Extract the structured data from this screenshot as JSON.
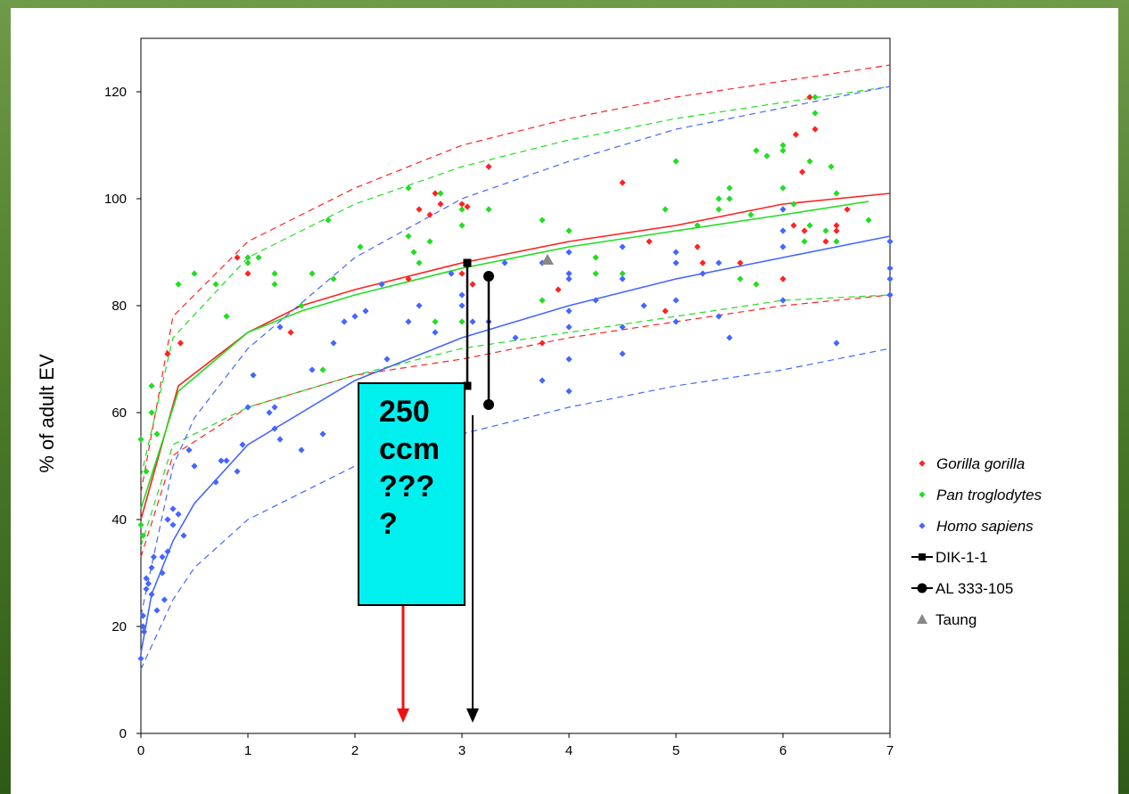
{
  "chart_data": {
    "type": "scatter",
    "title": "",
    "xlabel": "",
    "ylabel": "% of adult EV",
    "xlim": [
      0,
      7
    ],
    "ylim": [
      0,
      130
    ],
    "x_ticks": [
      "0",
      "1",
      "2",
      "3",
      "4",
      "5",
      "6",
      "7"
    ],
    "y_ticks": [
      "0",
      "20",
      "40",
      "60",
      "80",
      "100",
      "120"
    ],
    "grid": false,
    "legend_position": "right",
    "colors": {
      "gorilla": "#ff2222",
      "pan": "#22dd22",
      "homo": "#4466ff",
      "fossil": "#000000",
      "taung": "#888888",
      "arrow_red": "#ee1111"
    },
    "series": [
      {
        "name": "Gorilla gorilla",
        "marker": "diamond",
        "color": "#ff2222",
        "points": [
          [
            0.25,
            71
          ],
          [
            0.37,
            73
          ],
          [
            0.9,
            89
          ],
          [
            1.0,
            86
          ],
          [
            1.4,
            75
          ],
          [
            2.5,
            85
          ],
          [
            2.6,
            98
          ],
          [
            2.7,
            97
          ],
          [
            2.75,
            101
          ],
          [
            2.8,
            99
          ],
          [
            3.0,
            99
          ],
          [
            3.05,
            98.5
          ],
          [
            3.0,
            86
          ],
          [
            3.1,
            84
          ],
          [
            3.25,
            106
          ],
          [
            3.75,
            73
          ],
          [
            3.9,
            83
          ],
          [
            4.5,
            103
          ],
          [
            4.75,
            92
          ],
          [
            4.9,
            79
          ],
          [
            5.2,
            91
          ],
          [
            5.25,
            88
          ],
          [
            5.6,
            88
          ],
          [
            6.0,
            85
          ],
          [
            6.1,
            95
          ],
          [
            6.12,
            112
          ],
          [
            6.18,
            105
          ],
          [
            6.2,
            94
          ],
          [
            6.25,
            119
          ],
          [
            6.3,
            113
          ],
          [
            6.4,
            92
          ],
          [
            6.5,
            95
          ],
          [
            6.5,
            94
          ],
          [
            6.6,
            98
          ],
          [
            7.0,
            82
          ]
        ],
        "fitted_mean": [
          [
            0.0,
            40
          ],
          [
            0.35,
            65
          ],
          [
            1.0,
            75
          ],
          [
            1.5,
            80
          ],
          [
            2.0,
            83
          ],
          [
            3.0,
            88
          ],
          [
            4.0,
            92
          ],
          [
            5.0,
            95
          ],
          [
            6.0,
            99
          ],
          [
            7.0,
            101
          ]
        ],
        "upper_bound": [
          [
            0.0,
            45
          ],
          [
            0.3,
            78
          ],
          [
            1.0,
            92
          ],
          [
            2.0,
            102
          ],
          [
            3.0,
            110
          ],
          [
            4.0,
            115
          ],
          [
            5.0,
            119
          ],
          [
            6.0,
            122
          ],
          [
            7.0,
            125
          ]
        ],
        "lower_bound": [
          [
            0.0,
            33
          ],
          [
            0.3,
            52
          ],
          [
            1.0,
            61
          ],
          [
            2.0,
            67
          ],
          [
            3.0,
            70
          ],
          [
            4.0,
            74
          ],
          [
            5.0,
            77
          ],
          [
            6.0,
            80
          ],
          [
            7.0,
            82
          ]
        ]
      },
      {
        "name": "Pan troglodytes",
        "marker": "diamond",
        "color": "#22dd22",
        "points": [
          [
            0.0,
            55
          ],
          [
            0.0,
            39
          ],
          [
            0.02,
            37
          ],
          [
            0.05,
            49
          ],
          [
            0.1,
            65
          ],
          [
            0.1,
            60
          ],
          [
            0.15,
            56
          ],
          [
            0.35,
            84
          ],
          [
            0.5,
            86
          ],
          [
            0.7,
            84
          ],
          [
            0.8,
            78
          ],
          [
            1.0,
            89
          ],
          [
            1.0,
            88
          ],
          [
            1.1,
            89
          ],
          [
            1.25,
            86
          ],
          [
            1.25,
            84
          ],
          [
            1.5,
            80
          ],
          [
            1.6,
            86
          ],
          [
            1.7,
            68
          ],
          [
            1.75,
            96
          ],
          [
            1.8,
            85
          ],
          [
            2.05,
            91
          ],
          [
            2.25,
            84
          ],
          [
            2.5,
            102
          ],
          [
            2.5,
            93
          ],
          [
            2.55,
            90
          ],
          [
            2.6,
            88
          ],
          [
            2.7,
            92
          ],
          [
            2.75,
            77
          ],
          [
            2.8,
            101
          ],
          [
            3.0,
            98
          ],
          [
            3.0,
            95
          ],
          [
            3.0,
            77
          ],
          [
            3.25,
            98
          ],
          [
            3.75,
            96
          ],
          [
            3.75,
            81
          ],
          [
            4.0,
            94
          ],
          [
            4.25,
            89
          ],
          [
            4.25,
            86
          ],
          [
            4.5,
            86
          ],
          [
            4.9,
            98
          ],
          [
            5.0,
            107
          ],
          [
            5.2,
            95
          ],
          [
            5.4,
            98
          ],
          [
            5.4,
            100
          ],
          [
            5.5,
            100
          ],
          [
            5.5,
            102
          ],
          [
            5.6,
            85
          ],
          [
            5.7,
            97
          ],
          [
            5.75,
            109
          ],
          [
            5.75,
            84
          ],
          [
            5.85,
            108
          ],
          [
            6.0,
            110
          ],
          [
            6.0,
            109
          ],
          [
            6.0,
            102
          ],
          [
            6.1,
            99
          ],
          [
            6.2,
            92
          ],
          [
            6.25,
            95
          ],
          [
            6.25,
            107
          ],
          [
            6.3,
            116
          ],
          [
            6.3,
            119
          ],
          [
            6.4,
            94
          ],
          [
            6.45,
            106
          ],
          [
            6.5,
            101
          ],
          [
            6.5,
            92
          ],
          [
            6.8,
            96
          ]
        ],
        "fitted_mean": [
          [
            0.0,
            42
          ],
          [
            0.35,
            64
          ],
          [
            1.0,
            75
          ],
          [
            1.5,
            79
          ],
          [
            2.0,
            82
          ],
          [
            3.0,
            87
          ],
          [
            4.0,
            91
          ],
          [
            5.0,
            94
          ],
          [
            6.0,
            97
          ],
          [
            6.8,
            99.5
          ]
        ],
        "upper_bound": [
          [
            0.0,
            48
          ],
          [
            0.3,
            74
          ],
          [
            1.0,
            89
          ],
          [
            2.0,
            99
          ],
          [
            3.0,
            106
          ],
          [
            4.0,
            111
          ],
          [
            5.0,
            115
          ],
          [
            6.0,
            118
          ],
          [
            7.0,
            121
          ]
        ],
        "lower_bound": [
          [
            0.0,
            35
          ],
          [
            0.3,
            54
          ],
          [
            1.0,
            61
          ],
          [
            2.0,
            67
          ],
          [
            3.0,
            72
          ],
          [
            4.0,
            75
          ],
          [
            5.0,
            78
          ],
          [
            6.0,
            81
          ],
          [
            7.0,
            82
          ]
        ]
      },
      {
        "name": "Homo sapiens",
        "marker": "diamond",
        "color": "#4466ff",
        "points": [
          [
            0.0,
            14
          ],
          [
            0.02,
            20
          ],
          [
            0.02,
            22
          ],
          [
            0.03,
            19
          ],
          [
            0.05,
            27
          ],
          [
            0.05,
            29
          ],
          [
            0.07,
            28
          ],
          [
            0.1,
            26
          ],
          [
            0.1,
            31
          ],
          [
            0.12,
            33
          ],
          [
            0.15,
            23
          ],
          [
            0.2,
            30
          ],
          [
            0.2,
            33
          ],
          [
            0.22,
            25
          ],
          [
            0.25,
            34
          ],
          [
            0.25,
            40
          ],
          [
            0.3,
            39
          ],
          [
            0.3,
            42
          ],
          [
            0.35,
            41
          ],
          [
            0.4,
            37
          ],
          [
            0.45,
            53
          ],
          [
            0.5,
            50
          ],
          [
            0.7,
            47
          ],
          [
            0.75,
            51
          ],
          [
            0.8,
            51
          ],
          [
            0.9,
            49
          ],
          [
            0.95,
            54
          ],
          [
            1.0,
            61
          ],
          [
            1.05,
            67
          ],
          [
            1.2,
            60
          ],
          [
            1.25,
            57
          ],
          [
            1.25,
            61
          ],
          [
            1.3,
            55
          ],
          [
            1.3,
            76
          ],
          [
            1.5,
            53
          ],
          [
            1.6,
            68
          ],
          [
            1.7,
            56
          ],
          [
            1.8,
            73
          ],
          [
            1.9,
            77
          ],
          [
            2.0,
            78
          ],
          [
            2.1,
            79
          ],
          [
            2.25,
            84
          ],
          [
            2.3,
            70
          ],
          [
            2.5,
            77
          ],
          [
            2.6,
            80
          ],
          [
            2.75,
            75
          ],
          [
            2.9,
            86
          ],
          [
            3.0,
            82
          ],
          [
            3.0,
            80
          ],
          [
            3.1,
            77
          ],
          [
            3.25,
            77
          ],
          [
            3.4,
            88
          ],
          [
            3.5,
            74
          ],
          [
            3.75,
            88
          ],
          [
            3.75,
            66
          ],
          [
            4.0,
            90
          ],
          [
            4.0,
            86
          ],
          [
            4.0,
            85
          ],
          [
            4.0,
            79
          ],
          [
            4.0,
            76
          ],
          [
            4.0,
            70
          ],
          [
            4.0,
            64
          ],
          [
            4.25,
            81
          ],
          [
            4.5,
            91
          ],
          [
            4.5,
            85
          ],
          [
            4.5,
            76
          ],
          [
            4.5,
            71
          ],
          [
            4.7,
            80
          ],
          [
            5.0,
            90
          ],
          [
            5.0,
            88
          ],
          [
            5.0,
            81
          ],
          [
            5.0,
            77
          ],
          [
            5.25,
            86
          ],
          [
            5.4,
            88
          ],
          [
            5.4,
            78
          ],
          [
            5.5,
            74
          ],
          [
            6.0,
            98
          ],
          [
            6.0,
            94
          ],
          [
            6.0,
            91
          ],
          [
            6.0,
            81
          ],
          [
            6.5,
            73
          ],
          [
            7.0,
            92
          ],
          [
            7.0,
            87
          ],
          [
            7.0,
            85
          ],
          [
            7.0,
            82
          ]
        ],
        "fitted_mean": [
          [
            0.0,
            15
          ],
          [
            0.1,
            26
          ],
          [
            0.3,
            36
          ],
          [
            0.5,
            43
          ],
          [
            1.0,
            54
          ],
          [
            2.0,
            66
          ],
          [
            3.0,
            74
          ],
          [
            4.0,
            80
          ],
          [
            5.0,
            85
          ],
          [
            6.0,
            89
          ],
          [
            7.0,
            93
          ]
        ],
        "upper_bound": [
          [
            0.0,
            22
          ],
          [
            0.3,
            50
          ],
          [
            0.5,
            59
          ],
          [
            1.0,
            72
          ],
          [
            2.0,
            89
          ],
          [
            3.0,
            100
          ],
          [
            4.0,
            107
          ],
          [
            5.0,
            113
          ],
          [
            6.0,
            117
          ],
          [
            7.0,
            121
          ]
        ],
        "lower_bound": [
          [
            0.0,
            12
          ],
          [
            0.3,
            25
          ],
          [
            0.5,
            31
          ],
          [
            1.0,
            40
          ],
          [
            2.0,
            50
          ],
          [
            3.0,
            56
          ],
          [
            4.0,
            61
          ],
          [
            5.0,
            65
          ],
          [
            6.0,
            68
          ],
          [
            7.0,
            72
          ]
        ]
      },
      {
        "name": "DIK-1-1",
        "marker": "square",
        "color": "#000000",
        "range": {
          "x": 3.05,
          "y_min": 65,
          "y_max": 88
        }
      },
      {
        "name": "AL 333-105",
        "marker": "circle",
        "color": "#000000",
        "range": {
          "x": 3.25,
          "y_min": 61.5,
          "y_max": 85.5
        }
      },
      {
        "name": "Taung",
        "marker": "triangle",
        "color": "#888888",
        "points": [
          [
            3.8,
            88.5
          ]
        ]
      }
    ],
    "annotations": {
      "box_text": "250\nccm\n???\n?",
      "arrows": [
        {
          "color": "#ee1111",
          "x": 2.45,
          "from_y": 25.5,
          "to_y": 2
        },
        {
          "color": "#000000",
          "x": 3.1,
          "from_y": 59.5,
          "to_y": 2
        }
      ]
    }
  }
}
